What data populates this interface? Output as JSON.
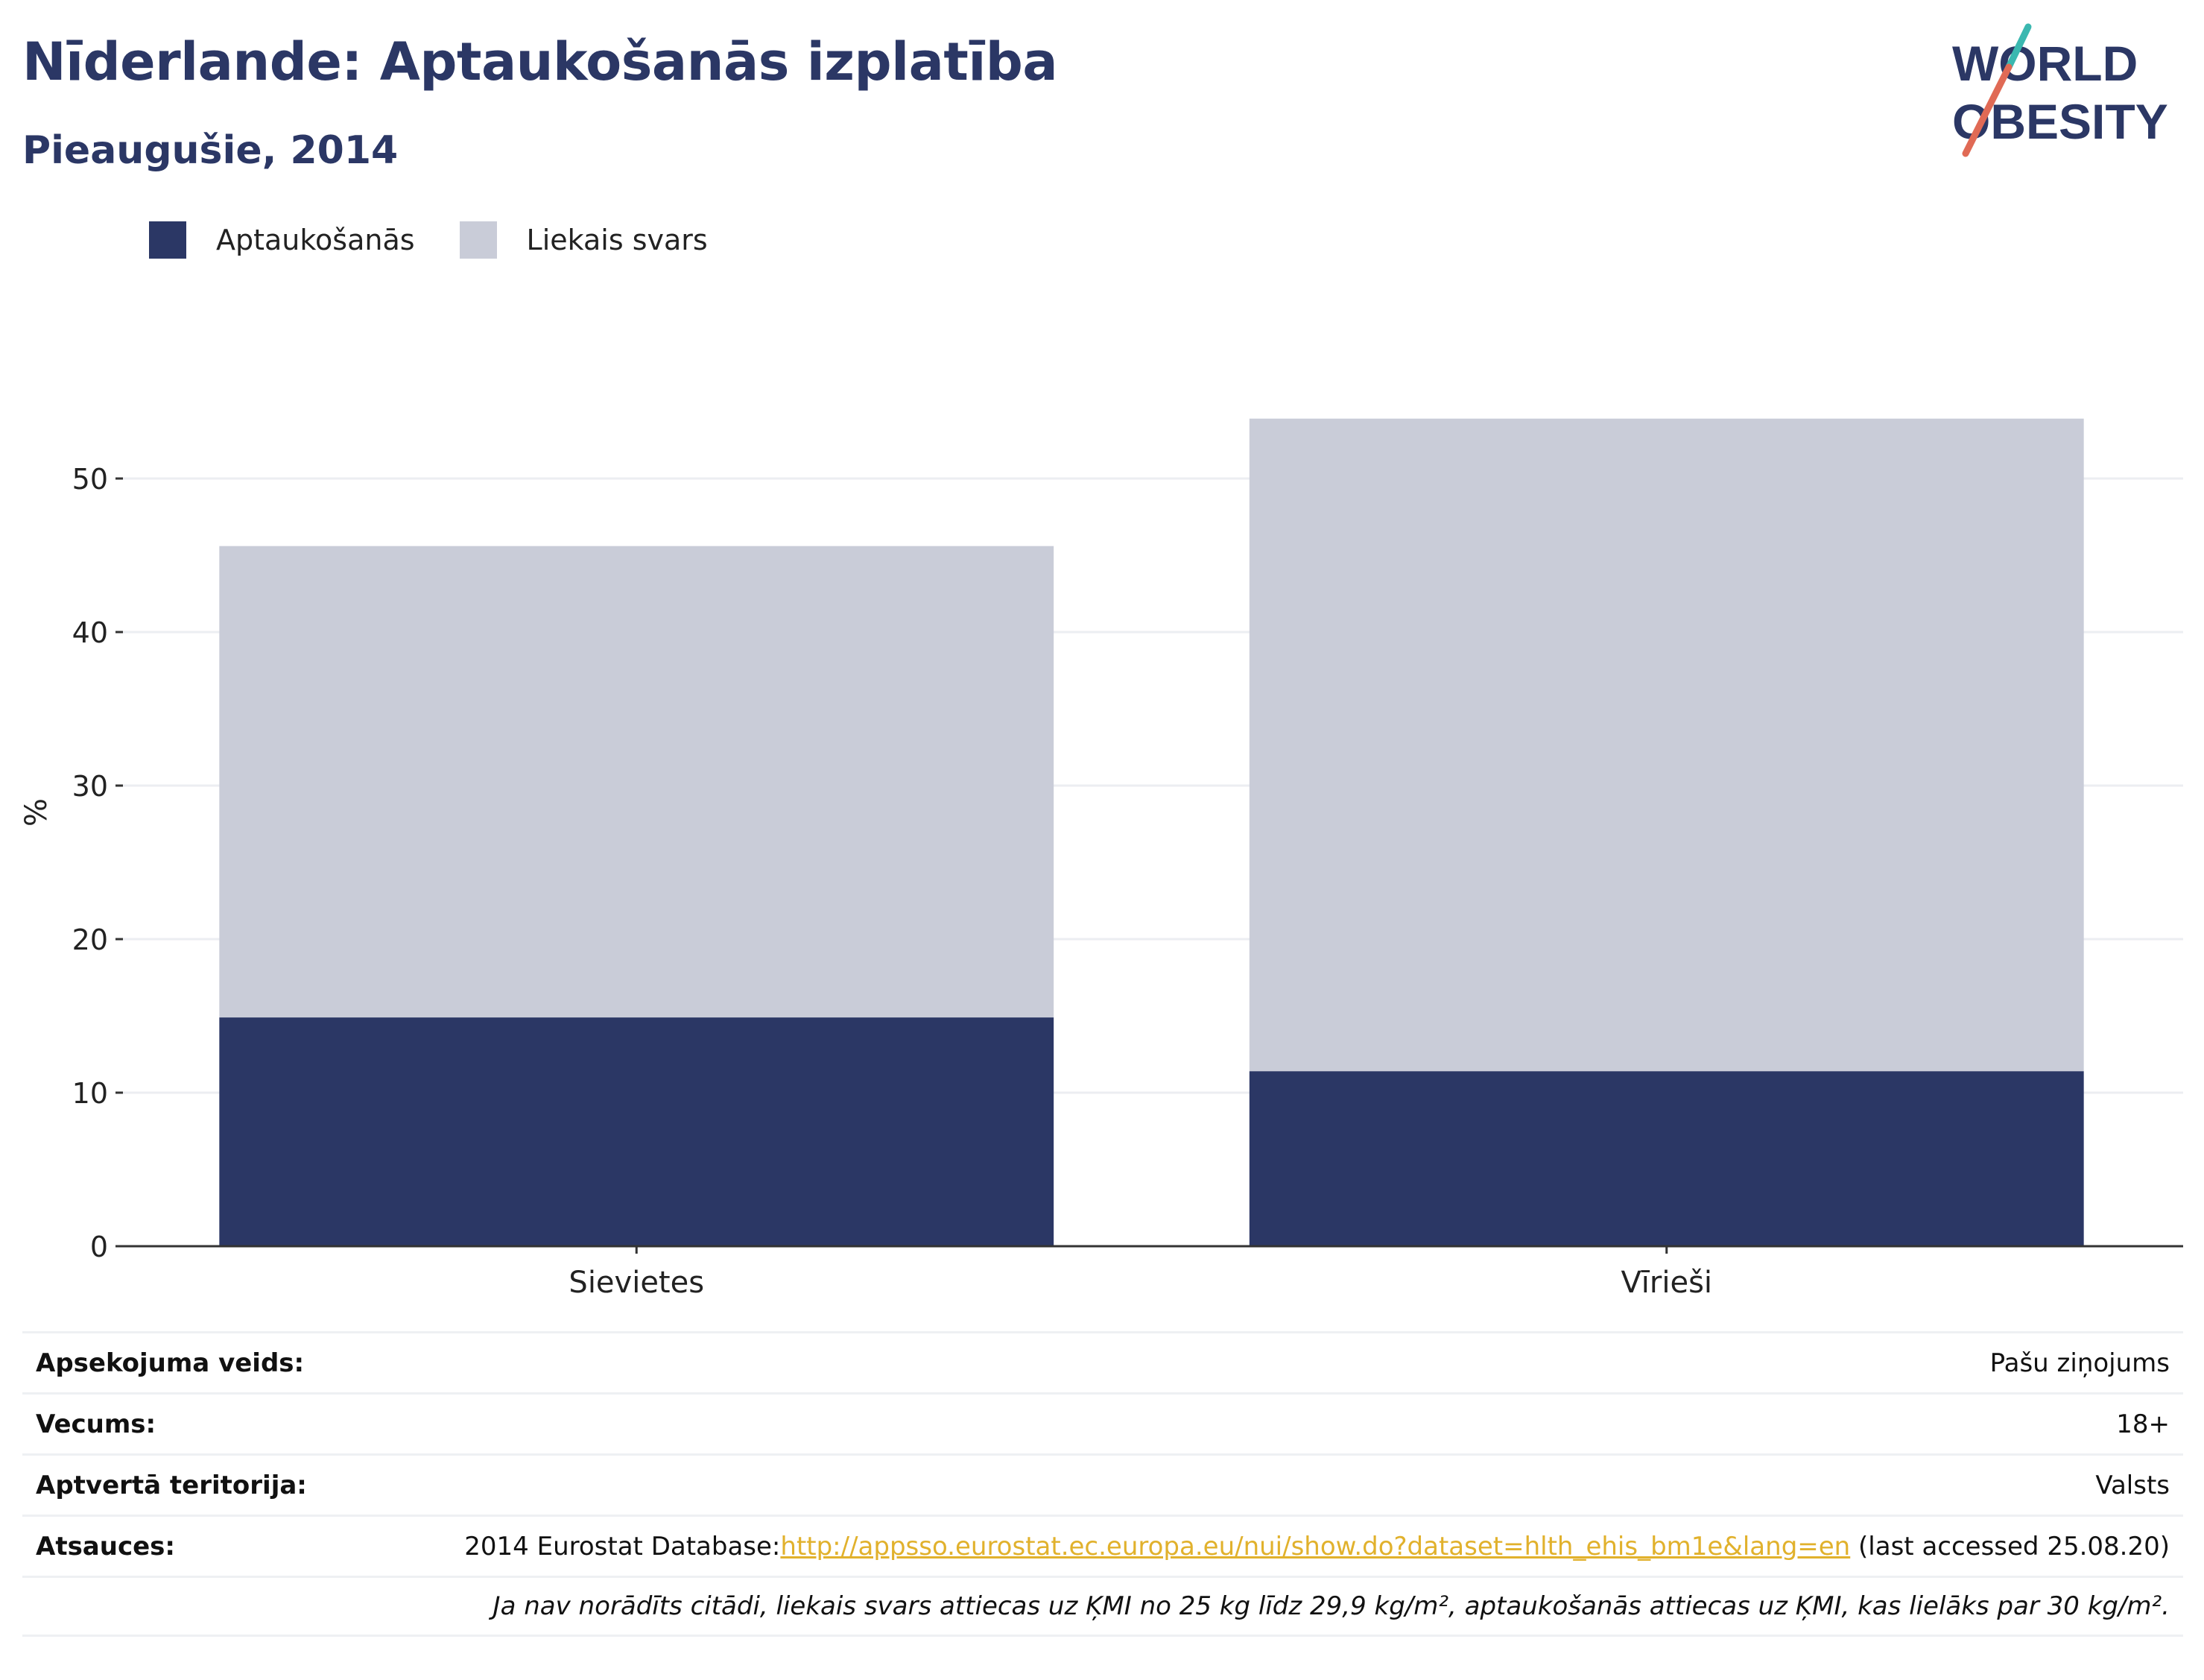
{
  "header": {
    "title": "Nīderlande: Aptaukošanās izplatība",
    "subtitle": "Pieaugušie, 2014"
  },
  "logo": {
    "line1": "WORLD",
    "line2": "OBESITY"
  },
  "legend": [
    {
      "label": "Aptaukošanās",
      "color": "#2b3765"
    },
    {
      "label": "Liekais svars",
      "color": "#c9ccd8"
    }
  ],
  "chart_data": {
    "type": "bar",
    "stacked": true,
    "categories": [
      "Sievietes",
      "Vīrieši"
    ],
    "series": [
      {
        "name": "Aptaukošanās",
        "color": "#2b3765",
        "values": [
          14.9,
          11.4
        ]
      },
      {
        "name": "Liekais svars",
        "color": "#c9ccd8",
        "values": [
          30.7,
          42.5
        ]
      }
    ],
    "ylabel": "%",
    "ylim": [
      0,
      58
    ],
    "yticks": [
      0,
      10,
      20,
      30,
      40,
      50
    ],
    "grid": true,
    "legend_position": "top-left"
  },
  "info": {
    "rows": [
      {
        "label": "Apsekojuma veids:",
        "value": "Pašu ziņojums"
      },
      {
        "label": "Vecums:",
        "value": "18+"
      },
      {
        "label": "Aptvertā teritorija:",
        "value": "Valsts"
      }
    ],
    "source": {
      "label": "Atsauces:",
      "prefix": "2014 Eurostat Database:",
      "url": "http://appsso.eurostat.ec.europa.eu/nui/show.do?dataset=hlth_ehis_bm1e&lang=en",
      "suffix": " (last accessed 25.08.20)"
    },
    "note": "Ja nav norādīts citādi, liekais svars attiecas uz ĶMI no 25 kg līdz 29,9 kg/m², aptaukošanās attiecas uz ĶMI, kas lielāks par 30 kg/m²."
  }
}
